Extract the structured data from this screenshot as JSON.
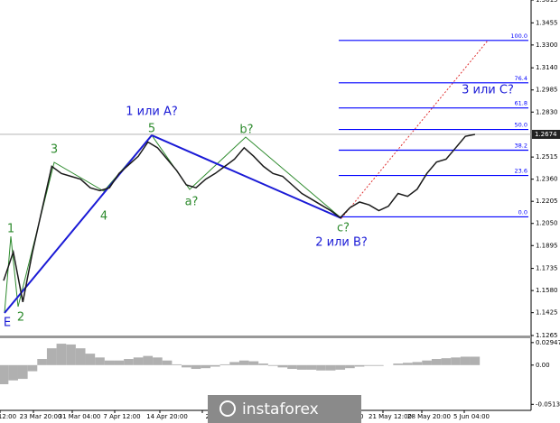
{
  "chart_data": {
    "type": "line",
    "color": "#1a1a1a",
    "values": [
      1.165,
      1.185,
      1.15,
      1.185,
      1.215,
      1.245,
      1.24,
      1.238,
      1.236,
      1.23,
      1.228,
      1.23,
      1.24,
      1.246,
      1.252,
      1.262,
      1.258,
      1.25,
      1.242,
      1.232,
      1.23,
      1.236,
      1.24,
      1.245,
      1.25,
      1.258,
      1.252,
      1.245,
      1.24,
      1.238,
      1.232,
      1.226,
      1.222,
      1.218,
      1.214,
      1.209,
      1.216,
      1.22,
      1.218,
      1.214,
      1.217,
      1.226,
      1.224,
      1.229,
      1.24,
      1.248,
      1.25,
      1.258,
      1.266,
      1.2674
    ],
    "ylim": [
      1.1265,
      1.3615
    ],
    "yticks": [
      1.3615,
      1.3455,
      {
        "value": 1.33,
        "label": "1.3300"
      },
      {
        "value": 1.314,
        "label": "1.3140"
      },
      1.2985,
      {
        "value": 1.283,
        "label": "1.2830"
      },
      1.2515,
      {
        "value": 1.236,
        "label": "1.2360"
      },
      1.2205,
      {
        "value": 1.205,
        "label": "1.2050"
      },
      1.1895,
      1.1735,
      {
        "value": 1.158,
        "label": "1.1580"
      },
      1.1425,
      1.1265
    ],
    "current_price": {
      "value": 1.2674,
      "label": "1.2674"
    },
    "x_labels": [
      "12:00",
      "23 Mar 20:00",
      "31 Mar 04:00",
      "7 Apr 12:00",
      "14 Apr 20:00",
      "22",
      "00",
      "21 May 12:00",
      "28 May 20:00",
      "5 Jun 04:00"
    ],
    "fib_color": "#0000ff",
    "fib_levels": [
      {
        "label": "0.0",
        "price": 1.2096
      },
      {
        "label": "23.6",
        "price": 1.2386
      },
      {
        "label": "38.2",
        "price": 1.2563
      },
      {
        "label": "50.0",
        "price": 1.2708
      },
      {
        "label": "61.8",
        "price": 1.2859
      },
      {
        "label": "76.4",
        "price": 1.3035
      },
      {
        "label": "100.0",
        "price": 1.3332
      }
    ],
    "annotations": [
      {
        "text": "1 или A?",
        "color": "#1a1ad6"
      },
      {
        "text": "5",
        "color": "#2e8b2e"
      },
      {
        "text": "3",
        "color": "#2e8b2e"
      },
      {
        "text": "4",
        "color": "#2e8b2e"
      },
      {
        "text": "1",
        "color": "#2e8b2e"
      },
      {
        "text": "2",
        "color": "#2e8b2e"
      },
      {
        "text": "E",
        "color": "#1a1ad6"
      },
      {
        "text": "a?",
        "color": "#2e8b2e"
      },
      {
        "text": "b?",
        "color": "#2e8b2e"
      },
      {
        "text": "c?",
        "color": "#2e8b2e"
      },
      {
        "text": "2 или B?",
        "color": "#1a1ad6"
      },
      {
        "text": "3 или C?",
        "color": "#1a1ad6"
      }
    ],
    "oscillator": {
      "color": "#b0b0b0",
      "values": [
        -0.025,
        -0.02,
        -0.018,
        -0.008,
        0.008,
        0.022,
        0.028,
        0.027,
        0.022,
        0.015,
        0.01,
        0.006,
        0.006,
        0.008,
        0.01,
        0.012,
        0.01,
        0.006,
        0.001,
        -0.003,
        -0.005,
        -0.004,
        -0.002,
        0.001,
        0.004,
        0.006,
        0.005,
        0.002,
        -0.001,
        -0.003,
        -0.005,
        -0.006,
        -0.006,
        -0.007,
        -0.007,
        -0.006,
        -0.004,
        -0.002,
        -0.001,
        -0.001,
        0,
        0.002,
        0.003,
        0.004,
        0.006,
        0.008,
        0.009,
        0.01,
        0.011,
        0.011
      ],
      "ylim": [
        -0.0557,
        0.034
      ],
      "yticks": [
        0.02947,
        {
          "value": 0,
          "label": "0.00"
        },
        -0.05133
      ]
    },
    "watermark": "instaforex"
  }
}
